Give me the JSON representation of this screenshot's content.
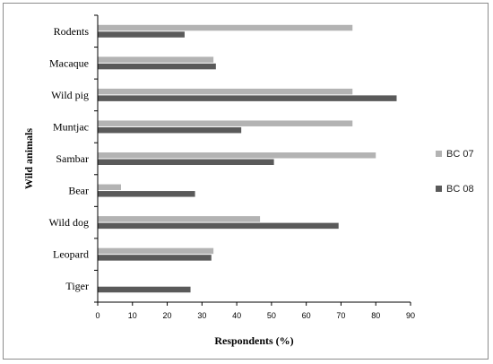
{
  "chart_data": {
    "type": "bar",
    "orientation": "horizontal",
    "title": "",
    "xlabel": "Respondents (%)",
    "ylabel": "Wild animals",
    "categories": [
      "Rodents",
      "Macaque",
      "Wild pig",
      "Muntjac",
      "Sambar",
      "Bear",
      "Wild dog",
      "Leopard",
      "Tiger"
    ],
    "series": [
      {
        "name": "BC 07",
        "color": "#b3b3b3",
        "values": [
          73.3,
          33.3,
          73.3,
          73.3,
          80,
          6.7,
          46.7,
          33.3,
          0
        ]
      },
      {
        "name": "BC 08",
        "color": "#5a5a5a",
        "values": [
          25,
          34,
          86,
          41.3,
          50.7,
          28,
          69.3,
          32.7,
          26.7
        ]
      }
    ],
    "xlim": [
      0,
      90
    ],
    "xticks": [
      "0",
      "10",
      "20",
      "30",
      "40",
      "50",
      "60",
      "70",
      "80",
      "90"
    ],
    "grid": false,
    "legend_position": "right"
  }
}
